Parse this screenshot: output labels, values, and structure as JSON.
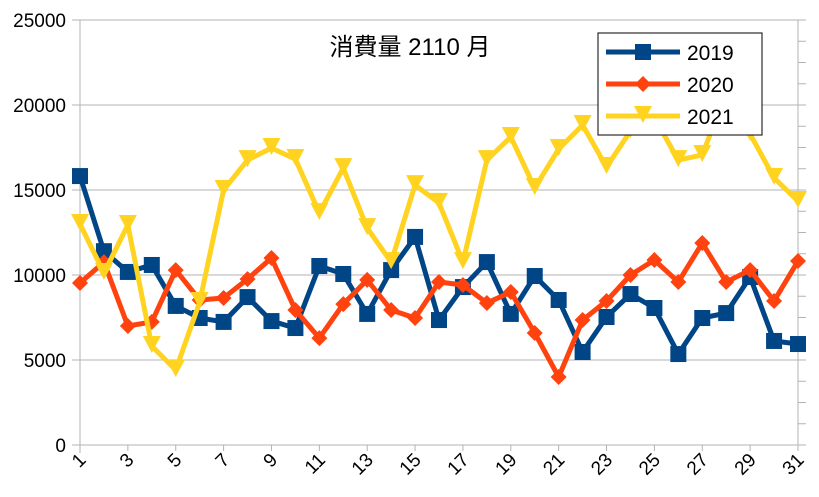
{
  "chart_data": {
    "type": "line",
    "title": "消費量 2110 月",
    "xlabel": "",
    "ylabel": "",
    "x": [
      1,
      2,
      3,
      4,
      5,
      6,
      7,
      8,
      9,
      10,
      11,
      12,
      13,
      14,
      15,
      16,
      17,
      18,
      19,
      20,
      21,
      22,
      23,
      24,
      25,
      26,
      27,
      28,
      29,
      30,
      31
    ],
    "x_tick_labels": [
      "1",
      "3",
      "5",
      "7",
      "9",
      "11",
      "13",
      "15",
      "17",
      "19",
      "21",
      "23",
      "25",
      "27",
      "29",
      "31"
    ],
    "y_tick_labels": [
      "0",
      "5000",
      "10000",
      "15000",
      "20000",
      "25000"
    ],
    "ylim": [
      0,
      25000
    ],
    "grid": true,
    "legend_position": "top-right",
    "series": [
      {
        "name": "2019",
        "color": "#004586",
        "marker": "square",
        "values": [
          15820,
          11400,
          10180,
          10590,
          8180,
          7470,
          7240,
          8700,
          7290,
          6880,
          10530,
          10060,
          7710,
          10290,
          12240,
          7350,
          9290,
          10760,
          7710,
          9940,
          8530,
          5470,
          7530,
          8880,
          8060,
          5350,
          7470,
          7760,
          9880,
          6120,
          5940
        ]
      },
      {
        "name": "2020",
        "color": "#ff420e",
        "marker": "diamond",
        "values": [
          9530,
          10760,
          7000,
          7240,
          10290,
          8530,
          8650,
          9760,
          11000,
          7940,
          6290,
          8290,
          9710,
          7940,
          7470,
          9590,
          9410,
          8350,
          9000,
          6590,
          4000,
          7350,
          8470,
          10000,
          10880,
          9590,
          11880,
          9590,
          10290,
          8470,
          10820
        ]
      },
      {
        "name": "2021",
        "color": "#ffd320",
        "marker": "triangle-down",
        "values": [
          13000,
          10120,
          12940,
          5820,
          4410,
          8410,
          15000,
          16760,
          17470,
          16820,
          13650,
          16290,
          12760,
          10760,
          15290,
          14240,
          10760,
          16760,
          18120,
          15120,
          17410,
          18820,
          16350,
          18470,
          19240,
          16760,
          17060,
          20760,
          18290,
          15710,
          14350
        ]
      }
    ]
  }
}
